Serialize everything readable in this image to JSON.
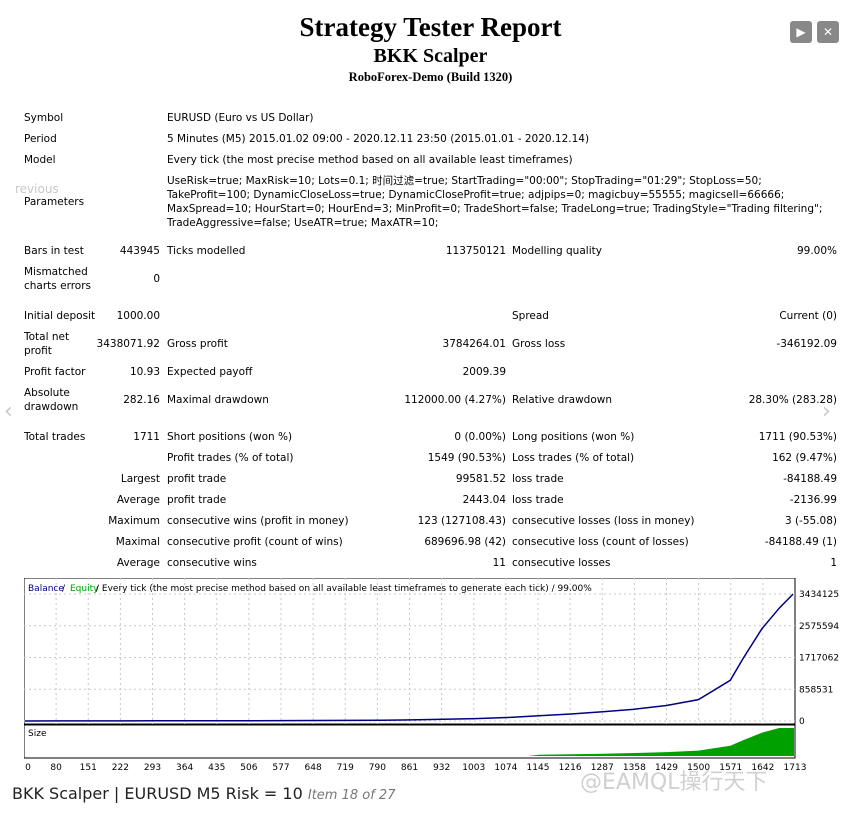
{
  "header": {
    "title": "Strategy Tester Report",
    "subtitle": "BKK Scalper",
    "server": "RoboForex-Demo (Build 1320)"
  },
  "nav": {
    "play_icon": "play-icon",
    "close_icon": "close-icon",
    "prev_label": "revious"
  },
  "info": {
    "symbol_label": "Symbol",
    "symbol_value": "EURUSD (Euro vs US Dollar)",
    "period_label": "Period",
    "period_value": "5 Minutes (M5) 2015.01.02 09:00 - 2020.12.11 23:50 (2015.01.01 - 2020.12.14)",
    "model_label": "Model",
    "model_value": "Every tick (the most precise method based on all available least timeframes)",
    "parameters_label": "Parameters",
    "parameters_value": "UseRisk=true; MaxRisk=10; Lots=0.1; 时间过滤=true; StartTrading=\"00:00\"; StopTrading=\"01:29\"; StopLoss=50; TakeProfit=100; DynamicCloseLoss=true; DynamicCloseProfit=true; adjpips=0; magicbuy=55555; magicsell=66666; MaxSpread=10; HourStart=0; HourEnd=3; MinProfit=0; TradeShort=false; TradeLong=true; TradingStyle=\"Trading filtering\"; TradeAggressive=false; UseATR=true; MaxATR=10;"
  },
  "stats": {
    "bars_label": "Bars in test",
    "bars_value": "443945",
    "ticks_label": "Ticks modelled",
    "ticks_value": "113750121",
    "quality_label": "Modelling quality",
    "quality_value": "99.00%",
    "mismatched_label_1": "Mismatched",
    "mismatched_label_2": "charts errors",
    "mismatched_value": "0",
    "deposit_label": "Initial deposit",
    "deposit_value": "1000.00",
    "spread_label": "Spread",
    "spread_value": "Current (0)",
    "netprofit_label_1": "Total net",
    "netprofit_label_2": "profit",
    "netprofit_value": "3438071.92",
    "grossprofit_label": "Gross profit",
    "grossprofit_value": "3784264.01",
    "grossloss_label": "Gross loss",
    "grossloss_value": "-346192.09",
    "pf_label": "Profit factor",
    "pf_value": "10.93",
    "payoff_label": "Expected payoff",
    "payoff_value": "2009.39",
    "absdd_label_1": "Absolute",
    "absdd_label_2": "drawdown",
    "absdd_value": "282.16",
    "maxdd_label": "Maximal drawdown",
    "maxdd_value": "112000.00 (4.27%)",
    "reldd_label": "Relative drawdown",
    "reldd_value": "28.30% (283.28)",
    "trades_label": "Total trades",
    "trades_value": "1711",
    "short_label": "Short positions (won %)",
    "short_value": "0 (0.00%)",
    "long_label": "Long positions (won %)",
    "long_value": "1711 (90.53%)",
    "profit_trades_label": "Profit trades (% of total)",
    "profit_trades_value": "1549 (90.53%)",
    "loss_trades_label": "Loss trades (% of total)",
    "loss_trades_value": "162 (9.47%)",
    "largest_label": "Largest",
    "largest_profit_label": "profit trade",
    "largest_profit_value": "99581.52",
    "largest_loss_label": "loss trade",
    "largest_loss_value": "-84188.49",
    "average_label": "Average",
    "average_profit_label": "profit trade",
    "average_profit_value": "2443.04",
    "average_loss_label": "loss trade",
    "average_loss_value": "-2136.99",
    "maximum_label": "Maximum",
    "max_cons_wins_label": "consecutive wins (profit in money)",
    "max_cons_wins_value": "123 (127108.43)",
    "max_cons_losses_label": "consecutive losses (loss in money)",
    "max_cons_losses_value": "3 (-55.08)",
    "maximal_label": "Maximal",
    "maximal_cons_profit_label": "consecutive profit (count of wins)",
    "maximal_cons_profit_value": "689696.98 (42)",
    "maximal_cons_loss_label": "consecutive loss (count of losses)",
    "maximal_cons_loss_value": "-84188.49 (1)",
    "avg_cons_label": "Average",
    "avg_cons_wins_label": "consecutive wins",
    "avg_cons_wins_value": "11",
    "avg_cons_losses_label": "consecutive losses",
    "avg_cons_losses_value": "1"
  },
  "chart_legend": {
    "balance": "Balance",
    "sep1": " / ",
    "equity": "Equity",
    "rest": " / Every tick (the most precise method based on all available least timeframes to generate each tick) / 99.00%",
    "size_label": "Size"
  },
  "colors": {
    "balance": "#000080",
    "equity": "#00a000",
    "size_bars": "#00a000",
    "grid": "#c8c8c8"
  },
  "chart_data": {
    "type": "line",
    "series": [
      {
        "name": "Balance",
        "x": [
          0,
          80,
          151,
          222,
          293,
          364,
          435,
          506,
          577,
          648,
          719,
          790,
          861,
          932,
          1003,
          1074,
          1145,
          1216,
          1287,
          1358,
          1429,
          1500,
          1571,
          1600,
          1642,
          1680,
          1711
        ],
        "values": [
          1000,
          1500,
          2500,
          3500,
          4500,
          6000,
          7500,
          9000,
          11000,
          13000,
          16000,
          20000,
          30000,
          45000,
          65000,
          95000,
          140000,
          190000,
          250000,
          320000,
          420000,
          580000,
          1100000,
          1700000,
          2500000,
          3050000,
          3434125
        ]
      }
    ],
    "y_ticks": [
      "3434125",
      "2575594",
      "1717062",
      "858531",
      "0"
    ],
    "x_ticks": [
      "0",
      "80",
      "151",
      "222",
      "293",
      "364",
      "435",
      "506",
      "577",
      "648",
      "719",
      "790",
      "861",
      "932",
      "1003",
      "1074",
      "1145",
      "1216",
      "1287",
      "1358",
      "1429",
      "1500",
      "1571",
      "1642",
      "1713"
    ],
    "ylim": [
      0,
      3434125
    ],
    "xlim": [
      0,
      1713
    ],
    "grid": true
  },
  "caption": {
    "main": "BKK Scalper | EURUSD M5 Risk = 10",
    "sub": "Item 18 of 27",
    "watermark": "@EAMQL操行天下"
  }
}
